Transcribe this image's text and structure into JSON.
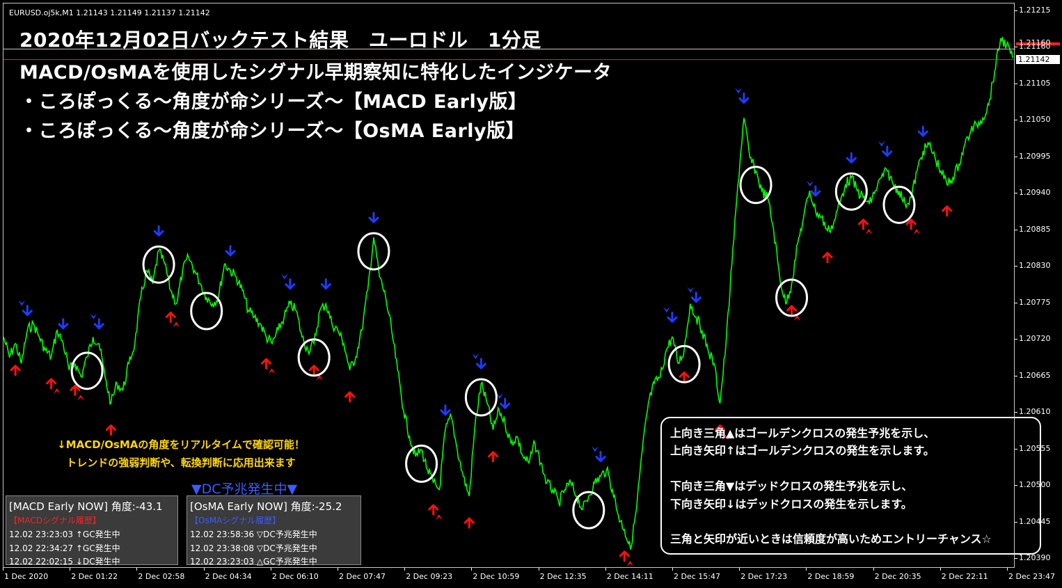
{
  "symbol_info": "EURUSD.oj5k,M1  1.21143 1.21149 1.21137 1.21142",
  "headlines": [
    "2020年12月02日バックテスト結果　ユーロドル　1分足",
    "MACD/OsMAを使用したシグナル早期察知に特化したインジケータ",
    "・ころぽっくる～角度が命シリーズ～【MACD Early版】",
    "・ころぽっくる～角度が命シリーズ～【OsMA Early版】"
  ],
  "price_axis": {
    "labels": [
      "1.21215",
      "1.21160",
      "1.21105",
      "1.21050",
      "1.20995",
      "1.20940",
      "1.20885",
      "1.20830",
      "1.20775",
      "1.20720",
      "1.20665",
      "1.20610",
      "1.20555",
      "1.20500",
      "1.20445",
      "1.20390"
    ],
    "current_price": "1.21142",
    "tag_price": "1.21160",
    "min": 1.2039,
    "max": 1.21215
  },
  "time_axis": {
    "labels": [
      "1 Dec 2020",
      "2 Dec 01:22",
      "2 Dec 02:58",
      "2 Dec 04:34",
      "2 Dec 06:10",
      "2 Dec 07:47",
      "2 Dec 09:23",
      "2 Dec 10:59",
      "2 Dec 12:35",
      "2 Dec 14:11",
      "2 Dec 15:47",
      "2 Dec 17:23",
      "2 Dec 18:59",
      "2 Dec 20:35",
      "2 Dec 22:11",
      "2 Dec 23:47"
    ]
  },
  "notes": {
    "line1": "↓MACD/OsMAの角度をリアルタイムで確認可能！",
    "line2": "トレンドの強弱判断や、転換判断に応用出来ます"
  },
  "dc_banner": "▼DC予兆発生中▼",
  "panels": [
    {
      "title": "[MACD Early NOW] 角度:-43.1",
      "subtitle": "【MACDシグナル履歴】",
      "subtitle_color": "#ff2020",
      "rows": [
        "12.02 23:23:03 ↑GC発生中",
        "12.02 22:34:27 ↑GC発生中",
        "12.02 22:02:15 ↓DC発生中"
      ]
    },
    {
      "title": "[OsMA Early NOW] 角度:-25.2",
      "subtitle": "【OsMAシグナル履歴】",
      "subtitle_color": "#3b5bff",
      "rows": [
        "12.02 23:58:36 ▽DC予兆発生中",
        "12.02 23:38:08 ▽DC予兆発生中",
        "12.02 23:23:03 △GC予兆発生中"
      ]
    }
  ],
  "legend": [
    "上向き三角▲はゴールデンクロスの発生予兆を示し、",
    "上向き矢印↑はゴールデンクロスの発生を示します。",
    "",
    "下向き三角▼はデッドクロスの発生予兆を示し、",
    "下向き矢印↓はデッドクロスの発生を示します。",
    "",
    "三角と矢印が近いときは信頼度が高いためエントリーチャンス☆"
  ],
  "chart_data": {
    "type": "line",
    "series": [
      {
        "values": [
          1.2072,
          1.2069,
          1.2071,
          1.2068,
          1.2073,
          1.2074,
          1.2072,
          1.207,
          1.2069,
          1.2073,
          1.2071,
          1.2067,
          1.2068,
          1.2066,
          1.2069,
          1.2072,
          1.2071,
          1.2066,
          1.2062,
          1.2065,
          1.2064,
          1.2068,
          1.2071,
          1.2078,
          1.2082,
          1.208,
          1.2085,
          1.2083,
          1.2079,
          1.2077,
          1.2082,
          1.2084,
          1.2082,
          1.208,
          1.2078,
          1.2077,
          1.2078,
          1.2083,
          1.2082,
          1.2081,
          1.2079,
          1.2076,
          1.2075,
          1.2074,
          1.2072,
          1.2071,
          1.2073,
          1.2075,
          1.2077,
          1.2076,
          1.2072,
          1.207,
          1.2071,
          1.2076,
          1.2077,
          1.2074,
          1.2073,
          1.2071,
          1.2067,
          1.2069,
          1.2073,
          1.2079,
          1.2087,
          1.2081,
          1.2078,
          1.2073,
          1.2067,
          1.2061,
          1.2057,
          1.2054,
          1.2055,
          1.2052,
          1.205,
          1.2049,
          1.2058,
          1.206,
          1.2055,
          1.2051,
          1.2048,
          1.2059,
          1.2065,
          1.2062,
          1.2058,
          1.2061,
          1.2059,
          1.2056,
          1.2057,
          1.2054,
          1.2053,
          1.2056,
          1.2053,
          1.205,
          1.2049,
          1.2047,
          1.2049,
          1.205,
          1.2048,
          1.2046,
          1.2048,
          1.205,
          1.2051,
          1.2052,
          1.2049,
          1.2045,
          1.2043,
          1.204,
          1.2046,
          1.2055,
          1.2062,
          1.2065,
          1.2066,
          1.207,
          1.2072,
          1.2068,
          1.207,
          1.2077,
          1.2075,
          1.2073,
          1.207,
          1.2068,
          1.2062,
          1.2071,
          1.2083,
          1.2095,
          1.2105,
          1.2099,
          1.2097,
          1.2094,
          1.2093,
          1.2088,
          1.2081,
          1.2077,
          1.208,
          1.2086,
          1.209,
          1.2094,
          1.2091,
          1.209,
          1.2088,
          1.2089,
          1.2092,
          1.2095,
          1.2096,
          1.2094,
          1.2093,
          1.2092,
          1.2094,
          1.2096,
          1.2097,
          1.2095,
          1.2094,
          1.2092,
          1.2093,
          1.2097,
          1.21,
          1.2101,
          1.2099,
          1.2097,
          1.2095,
          1.2096,
          1.2098,
          1.2101,
          1.2103,
          1.2104,
          1.2105,
          1.2107,
          1.2112,
          1.2117,
          1.2116,
          1.2114
        ]
      }
    ]
  }
}
